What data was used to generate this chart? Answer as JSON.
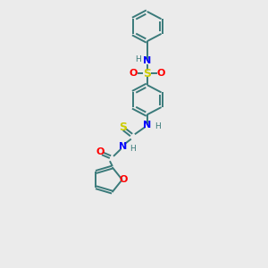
{
  "background_color": "#ebebeb",
  "atom_colors": {
    "C": "#3a7a7a",
    "N": "#0000ff",
    "O": "#ff0000",
    "S": "#cccc00"
  },
  "bond_color": "#3a7a7a",
  "figsize": [
    3.0,
    3.0
  ],
  "dpi": 100,
  "xlim": [
    0,
    10
  ],
  "ylim": [
    0,
    11
  ]
}
